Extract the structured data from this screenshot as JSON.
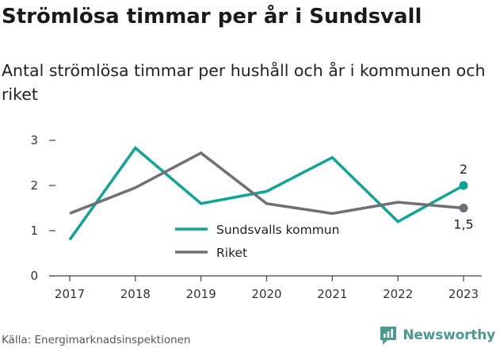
{
  "header": {
    "title": "Strömlösa timmar per år i Sundsvall",
    "subtitle": "Antal strömlösa timmar per hushåll och år i kommunen och riket"
  },
  "footer": {
    "source": "Källa: Energimarknadsinspektionen",
    "brand": "Newsworthy"
  },
  "colors": {
    "sundsvall": "#0fa595",
    "riket": "#6f6f75",
    "brand": "#4a9a8f"
  },
  "chart_data": {
    "type": "line",
    "x": [
      "2017",
      "2018",
      "2019",
      "2020",
      "2021",
      "2022",
      "2023"
    ],
    "ylim": [
      0,
      3
    ],
    "yticks": [
      "0",
      "1",
      "2",
      "3"
    ],
    "grid": false,
    "legend_position": "center",
    "series": [
      {
        "name": "Sundsvalls kommun",
        "values": [
          0.8,
          2.83,
          1.6,
          1.87,
          2.62,
          1.2,
          2.0
        ],
        "end_label": "2"
      },
      {
        "name": "Riket",
        "values": [
          1.38,
          1.95,
          2.72,
          1.6,
          1.38,
          1.63,
          1.5
        ],
        "end_label": "1,5"
      }
    ]
  }
}
